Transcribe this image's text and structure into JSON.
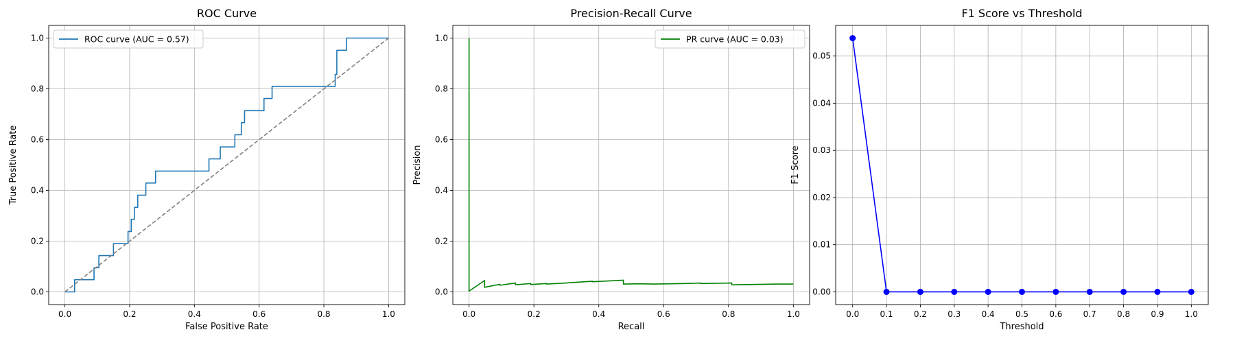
{
  "chart_data": [
    {
      "type": "line",
      "title": "ROC Curve",
      "xlabel": "False Positive Rate",
      "ylabel": "True Positive Rate",
      "xlim": [
        -0.05,
        1.05
      ],
      "ylim": [
        -0.05,
        1.05
      ],
      "xticks": [
        "0.0",
        "0.2",
        "0.4",
        "0.6",
        "0.8",
        "1.0"
      ],
      "yticks": [
        "0.0",
        "0.2",
        "0.4",
        "0.6",
        "0.8",
        "1.0"
      ],
      "grid": true,
      "legend_position": "top-left",
      "series": [
        {
          "name": "ROC curve (AUC = 0.57)",
          "color": "#1f77b4",
          "style": "solid",
          "x": [
            0.0,
            0.0,
            0.03,
            0.03,
            0.09,
            0.09,
            0.105,
            0.105,
            0.15,
            0.15,
            0.195,
            0.195,
            0.205,
            0.205,
            0.215,
            0.215,
            0.225,
            0.225,
            0.25,
            0.25,
            0.265,
            0.265,
            0.28,
            0.28,
            0.445,
            0.445,
            0.48,
            0.48,
            0.525,
            0.525,
            0.545,
            0.545,
            0.555,
            0.555,
            0.615,
            0.615,
            0.64,
            0.64,
            0.835,
            0.835,
            0.84,
            0.84,
            0.87,
            0.87,
            1.0
          ],
          "y": [
            0.0,
            0.0,
            0.0,
            0.048,
            0.048,
            0.095,
            0.095,
            0.143,
            0.143,
            0.19,
            0.19,
            0.238,
            0.238,
            0.286,
            0.286,
            0.333,
            0.333,
            0.381,
            0.381,
            0.429,
            0.429,
            0.429,
            0.429,
            0.476,
            0.476,
            0.524,
            0.524,
            0.571,
            0.571,
            0.619,
            0.619,
            0.667,
            0.667,
            0.714,
            0.714,
            0.762,
            0.762,
            0.81,
            0.81,
            0.857,
            0.857,
            0.952,
            0.952,
            1.0,
            1.0
          ]
        },
        {
          "name": "",
          "color": "#808080",
          "style": "dashed",
          "x": [
            0,
            1
          ],
          "y": [
            0,
            1
          ]
        }
      ]
    },
    {
      "type": "line",
      "title": "Precision-Recall Curve",
      "xlabel": "Recall",
      "ylabel": "Precision",
      "xlim": [
        -0.05,
        1.05
      ],
      "ylim": [
        -0.05,
        1.05
      ],
      "xticks": [
        "0.0",
        "0.2",
        "0.4",
        "0.6",
        "0.8",
        "1.0"
      ],
      "yticks": [
        "0.0",
        "0.2",
        "0.4",
        "0.6",
        "0.8",
        "1.0"
      ],
      "grid": true,
      "legend_position": "top-right",
      "series": [
        {
          "name": "PR curve (AUC = 0.03)",
          "color": "#008000",
          "style": "solid",
          "x": [
            0.0,
            0.0,
            0.048,
            0.048,
            0.095,
            0.095,
            0.143,
            0.143,
            0.19,
            0.19,
            0.238,
            0.238,
            0.286,
            0.333,
            0.381,
            0.381,
            0.429,
            0.476,
            0.476,
            0.524,
            0.571,
            0.619,
            0.667,
            0.714,
            0.714,
            0.762,
            0.81,
            0.81,
            0.857,
            0.905,
            0.952,
            1.0
          ],
          "y": [
            1.0,
            0.003,
            0.045,
            0.018,
            0.03,
            0.026,
            0.035,
            0.028,
            0.033,
            0.029,
            0.033,
            0.031,
            0.034,
            0.038,
            0.042,
            0.04,
            0.043,
            0.046,
            0.031,
            0.032,
            0.031,
            0.032,
            0.033,
            0.035,
            0.033,
            0.034,
            0.035,
            0.028,
            0.029,
            0.03,
            0.031,
            0.031
          ]
        }
      ]
    },
    {
      "type": "line",
      "title": "F1 Score vs Threshold",
      "xlabel": "Threshold",
      "ylabel": "F1 Score",
      "xlim": [
        -0.05,
        1.05
      ],
      "ylim": [
        -0.0027,
        0.0565
      ],
      "xticks": [
        "0.0",
        "0.1",
        "0.2",
        "0.3",
        "0.4",
        "0.5",
        "0.6",
        "0.7",
        "0.8",
        "0.9",
        "1.0"
      ],
      "yticks": [
        "0.00",
        "0.01",
        "0.02",
        "0.03",
        "0.04",
        "0.05"
      ],
      "grid": true,
      "series": [
        {
          "name": "",
          "color": "#0000ff",
          "style": "solid",
          "marker": "o",
          "x": [
            0.0,
            0.1,
            0.2,
            0.3,
            0.4,
            0.5,
            0.6,
            0.7,
            0.8,
            0.9,
            1.0
          ],
          "y": [
            0.0538,
            0,
            0,
            0,
            0,
            0,
            0,
            0,
            0,
            0,
            0
          ]
        }
      ]
    }
  ]
}
